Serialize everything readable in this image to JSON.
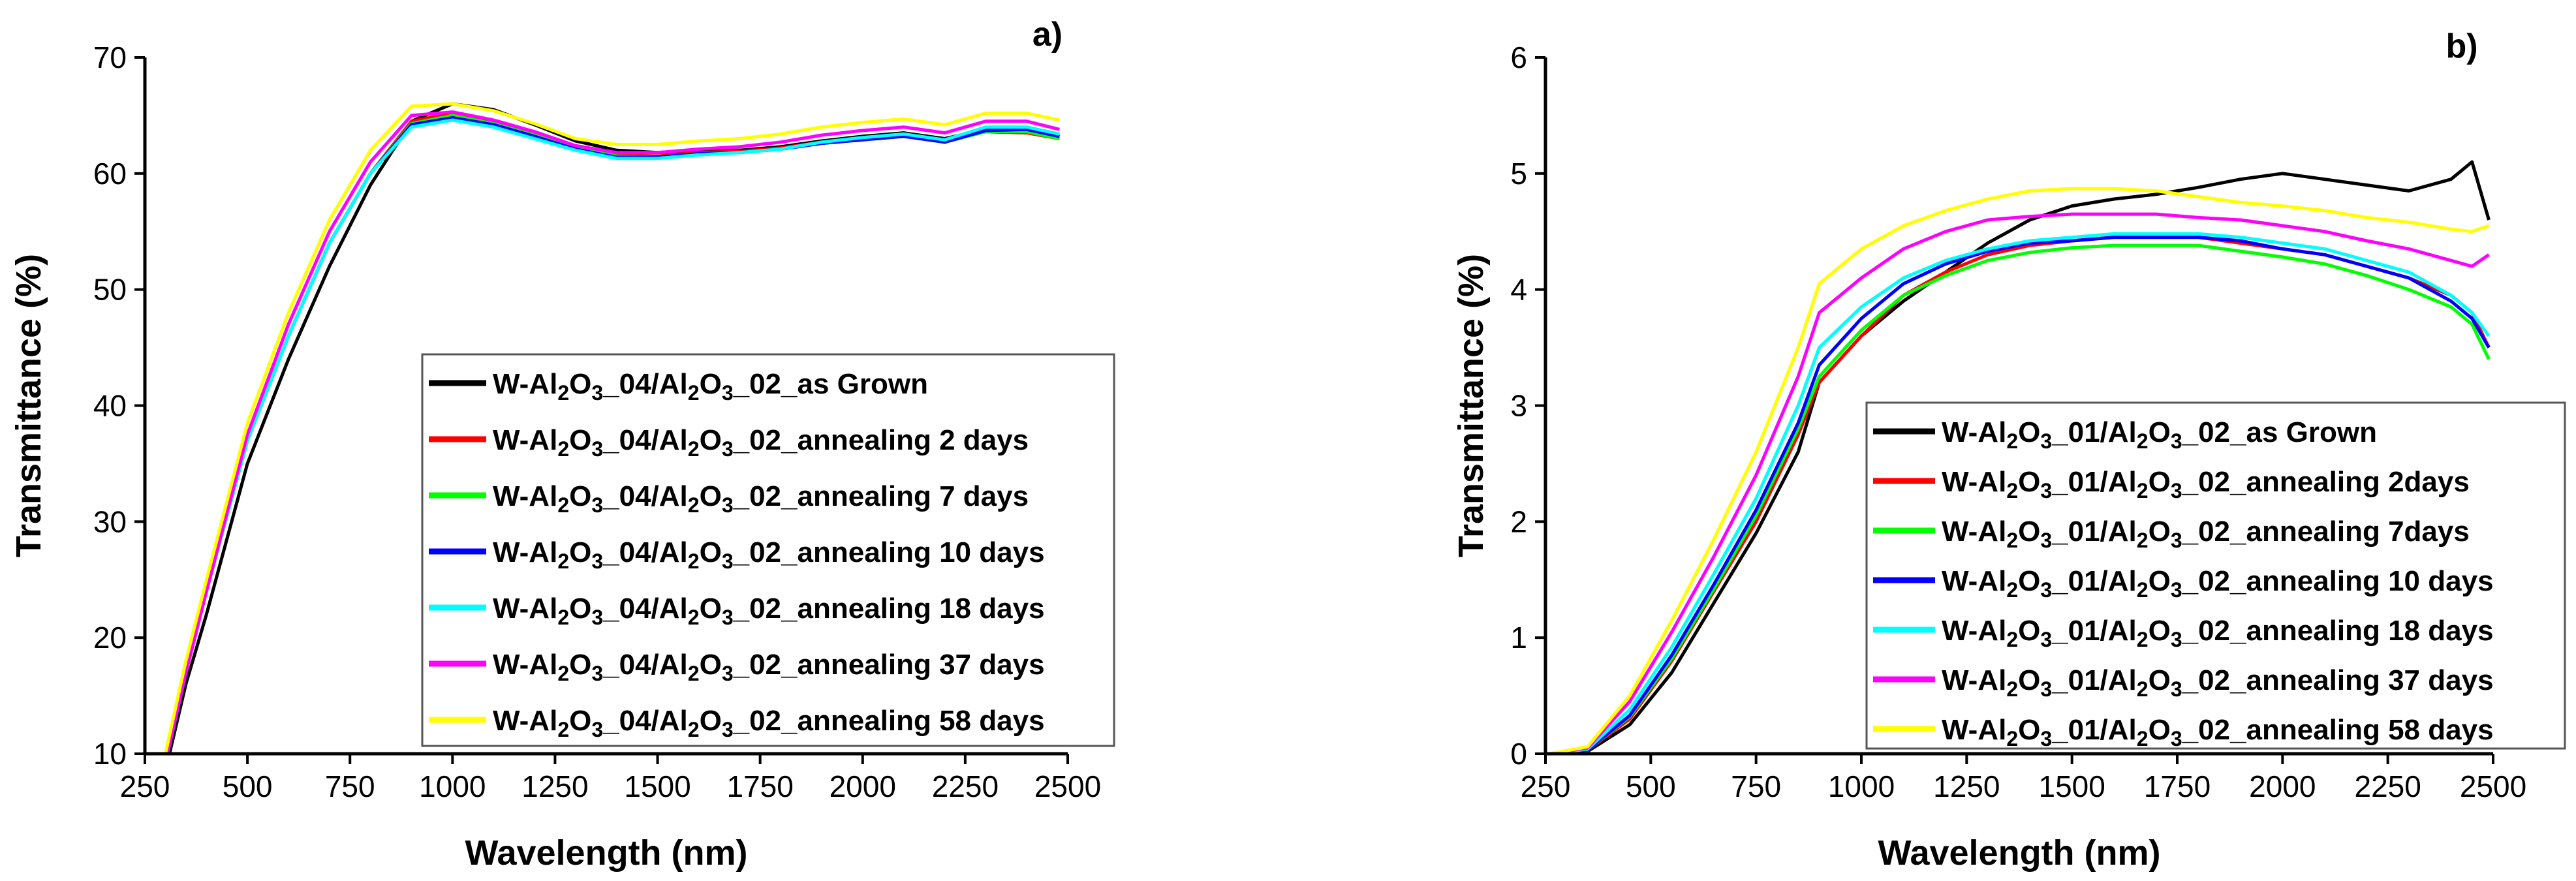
{
  "chart_data": [
    {
      "type": "line",
      "panel_label": "a)",
      "xlabel": "Wavelength (nm)",
      "ylabel": "Transmittance (%)",
      "xlim": [
        250,
        2500
      ],
      "ylim": [
        10,
        70
      ],
      "xticks": [
        250,
        500,
        750,
        1000,
        1250,
        1500,
        1750,
        2000,
        2250,
        2500
      ],
      "yticks": [
        10,
        20,
        30,
        40,
        50,
        60,
        70
      ],
      "xtick_labels": [
        "250",
        "500",
        "750",
        "1000",
        "1250",
        "1500",
        "1750",
        "2000",
        "2250",
        "2500"
      ],
      "ytick_labels": [
        "10",
        "20",
        "30",
        "40",
        "50",
        "60",
        "70"
      ],
      "legend_position": "center-right",
      "series": [
        {
          "name": "W-Al2O3_04/Al2O3_02_as Grown",
          "label_parts": [
            "W-Al",
            "2",
            "O",
            "3",
            "_04/Al",
            "2",
            "O",
            "3",
            "_02_as Grown"
          ],
          "color": "#000000",
          "x": [
            310,
            350,
            400,
            500,
            600,
            700,
            800,
            900,
            1000,
            1100,
            1200,
            1300,
            1400,
            1500,
            1600,
            1700,
            1800,
            1900,
            2000,
            2100,
            2200,
            2300,
            2400,
            2480
          ],
          "y": [
            10,
            16,
            22,
            35,
            44,
            52,
            59,
            64.5,
            66.0,
            65.5,
            64.2,
            62.8,
            62.0,
            61.8,
            62.0,
            62.0,
            62.3,
            62.8,
            63.2,
            63.5,
            63.0,
            63.8,
            63.8,
            63.2
          ]
        },
        {
          "name": "W-Al2O3_04/Al2O3_02_annealing 2 days",
          "label_parts": [
            "W-Al",
            "2",
            "O",
            "3",
            "_04/Al",
            "2",
            "O",
            "3",
            "_02_annealing 2 days"
          ],
          "color": "#ff0000",
          "x": [
            305,
            350,
            400,
            500,
            600,
            700,
            800,
            900,
            1000,
            1100,
            1200,
            1300,
            1400,
            1500,
            1600,
            1700,
            1800,
            1900,
            2000,
            2100,
            2200,
            2300,
            2400,
            2480
          ],
          "y": [
            10,
            17,
            24,
            37,
            46,
            54,
            60,
            64.5,
            65.2,
            64.5,
            63.5,
            62.3,
            61.6,
            61.5,
            61.8,
            61.9,
            62.2,
            62.7,
            63.0,
            63.3,
            62.8,
            63.6,
            63.5,
            63.0
          ]
        },
        {
          "name": "W-Al2O3_04/Al2O3_02_annealing 7 days",
          "label_parts": [
            "W-Al",
            "2",
            "O",
            "3",
            "_04/Al",
            "2",
            "O",
            "3",
            "_02_annealing 7 days"
          ],
          "color": "#00ff00",
          "x": [
            305,
            350,
            400,
            500,
            600,
            700,
            800,
            900,
            1000,
            1100,
            1200,
            1300,
            1400,
            1500,
            1600,
            1700,
            1800,
            1900,
            2000,
            2100,
            2200,
            2300,
            2400,
            2480
          ],
          "y": [
            10,
            17,
            24,
            37,
            46,
            54,
            60,
            64.3,
            65.0,
            64.3,
            63.3,
            62.2,
            61.5,
            61.4,
            61.7,
            61.8,
            62.1,
            62.6,
            62.9,
            63.2,
            62.7,
            63.6,
            63.6,
            63.0
          ]
        },
        {
          "name": "W-Al2O3_04/Al2O3_02_annealing 10 days",
          "label_parts": [
            "W-Al",
            "2",
            "O",
            "3",
            "_04/Al",
            "2",
            "O",
            "3",
            "_02_annealing 10 days"
          ],
          "color": "#0000ff",
          "x": [
            305,
            350,
            400,
            500,
            600,
            700,
            800,
            900,
            1000,
            1100,
            1200,
            1300,
            1400,
            1500,
            1600,
            1700,
            1800,
            1900,
            2000,
            2100,
            2200,
            2300,
            2400,
            2480
          ],
          "y": [
            10,
            17,
            24,
            37,
            46,
            54,
            60,
            64.2,
            64.8,
            64.2,
            63.2,
            62.1,
            61.4,
            61.4,
            61.7,
            61.8,
            62.1,
            62.6,
            62.9,
            63.2,
            62.7,
            63.7,
            63.8,
            63.2
          ]
        },
        {
          "name": "W-Al2O3_04/Al2O3_02_annealing 18 days",
          "label_parts": [
            "W-Al",
            "2",
            "O",
            "3",
            "_04/Al",
            "2",
            "O",
            "3",
            "_02_annealing 18 days"
          ],
          "color": "#00ffff",
          "x": [
            305,
            350,
            400,
            500,
            600,
            700,
            800,
            900,
            1000,
            1100,
            1200,
            1300,
            1400,
            1500,
            1600,
            1700,
            1800,
            1900,
            2000,
            2100,
            2200,
            2300,
            2400,
            2480
          ],
          "y": [
            10,
            17,
            24,
            37,
            46,
            54,
            60,
            64.0,
            64.6,
            64.0,
            63.0,
            62.0,
            61.3,
            61.3,
            61.6,
            61.8,
            62.1,
            62.7,
            63.1,
            63.4,
            62.9,
            64.0,
            64.0,
            63.4
          ]
        },
        {
          "name": "W-Al2O3_04/Al2O3_02_annealing 37 days",
          "label_parts": [
            "W-Al",
            "2",
            "O",
            "3",
            "_04/Al",
            "2",
            "O",
            "3",
            "_02_annealing 37 days"
          ],
          "color": "#ff00ff",
          "x": [
            305,
            350,
            400,
            500,
            600,
            700,
            800,
            900,
            1000,
            1100,
            1200,
            1300,
            1400,
            1500,
            1600,
            1700,
            1800,
            1900,
            2000,
            2100,
            2200,
            2300,
            2400,
            2480
          ],
          "y": [
            10,
            17,
            24,
            37.5,
            47,
            55,
            61,
            65.0,
            65.3,
            64.6,
            63.6,
            62.4,
            61.8,
            61.8,
            62.1,
            62.3,
            62.7,
            63.3,
            63.7,
            64.0,
            63.5,
            64.5,
            64.5,
            63.8
          ]
        },
        {
          "name": "W-Al2O3_04/Al2O3_02_annealing 58 days",
          "label_parts": [
            "W-Al",
            "2",
            "O",
            "3",
            "_04/Al",
            "2",
            "O",
            "3",
            "_02_annealing 58 days"
          ],
          "color": "#ffff00",
          "x": [
            300,
            350,
            400,
            500,
            600,
            700,
            800,
            900,
            1000,
            1100,
            1200,
            1300,
            1400,
            1500,
            1600,
            1700,
            1800,
            1900,
            2000,
            2100,
            2200,
            2300,
            2400,
            2480
          ],
          "y": [
            10,
            18,
            25,
            38.5,
            48,
            56,
            62,
            65.8,
            66.0,
            65.4,
            64.3,
            63.0,
            62.5,
            62.5,
            62.8,
            63.0,
            63.4,
            64.0,
            64.4,
            64.7,
            64.2,
            65.2,
            65.2,
            64.6
          ]
        }
      ]
    },
    {
      "type": "line",
      "panel_label": "b)",
      "xlabel": "Wavelength (nm)",
      "ylabel": "Transmittance (%)",
      "xlim": [
        250,
        2500
      ],
      "ylim": [
        0,
        6
      ],
      "xticks": [
        250,
        500,
        750,
        1000,
        1250,
        1500,
        1750,
        2000,
        2250,
        2500
      ],
      "yticks": [
        0,
        1,
        2,
        3,
        4,
        5,
        6
      ],
      "xtick_labels": [
        "250",
        "500",
        "750",
        "1000",
        "1250",
        "1500",
        "1750",
        "2000",
        "2250",
        "2500"
      ],
      "ytick_labels": [
        "0",
        "1",
        "2",
        "3",
        "4",
        "5",
        "6"
      ],
      "legend_position": "lower-right",
      "series": [
        {
          "name": "W-Al2O3_01/Al2O3_02_as Grown",
          "label_parts": [
            "W-Al",
            "2",
            "O",
            "3",
            "_01/Al",
            "2",
            "O",
            "3",
            "_02_as Grown"
          ],
          "color": "#000000",
          "x": [
            260,
            350,
            450,
            550,
            650,
            750,
            850,
            900,
            1000,
            1100,
            1200,
            1300,
            1400,
            1500,
            1600,
            1700,
            1800,
            1900,
            2000,
            2100,
            2200,
            2300,
            2400,
            2450,
            2490
          ],
          "y": [
            0,
            0.02,
            0.25,
            0.7,
            1.3,
            1.9,
            2.6,
            3.2,
            3.6,
            3.9,
            4.15,
            4.4,
            4.6,
            4.72,
            4.78,
            4.82,
            4.88,
            4.95,
            5.0,
            4.95,
            4.9,
            4.85,
            4.95,
            5.1,
            4.6
          ]
        },
        {
          "name": "W-Al2O3_01/Al2O3_02_annealing 2days",
          "label_parts": [
            "W-Al",
            "2",
            "O",
            "3",
            "_01/Al",
            "2",
            "O",
            "3",
            "_02_annealing 2days"
          ],
          "color": "#ff0000",
          "x": [
            260,
            350,
            450,
            550,
            650,
            750,
            850,
            900,
            1000,
            1100,
            1200,
            1300,
            1400,
            1500,
            1600,
            1700,
            1800,
            1900,
            2000,
            2100,
            2200,
            2300,
            2400,
            2450,
            2490
          ],
          "y": [
            0,
            0.03,
            0.3,
            0.8,
            1.4,
            2.0,
            2.75,
            3.2,
            3.6,
            3.95,
            4.15,
            4.3,
            4.38,
            4.42,
            4.45,
            4.45,
            4.45,
            4.4,
            4.35,
            4.3,
            4.2,
            4.1,
            3.95,
            3.8,
            3.5
          ]
        },
        {
          "name": "W-Al2O3_01/Al2O3_02_annealing 7days",
          "label_parts": [
            "W-Al",
            "2",
            "O",
            "3",
            "_01/Al",
            "2",
            "O",
            "3",
            "_02_annealing 7days"
          ],
          "color": "#00ff00",
          "x": [
            260,
            350,
            450,
            550,
            650,
            750,
            850,
            900,
            1000,
            1100,
            1200,
            1300,
            1400,
            1500,
            1600,
            1700,
            1800,
            1900,
            2000,
            2100,
            2200,
            2300,
            2400,
            2450,
            2490
          ],
          "y": [
            0,
            0.03,
            0.32,
            0.82,
            1.42,
            2.05,
            2.8,
            3.25,
            3.65,
            3.95,
            4.12,
            4.25,
            4.32,
            4.36,
            4.38,
            4.38,
            4.38,
            4.33,
            4.28,
            4.22,
            4.12,
            4.0,
            3.85,
            3.7,
            3.4
          ]
        },
        {
          "name": "W-Al2O3_01/Al2O3_02_annealing 10 days",
          "label_parts": [
            "W-Al",
            "2",
            "O",
            "3",
            "_01/Al",
            "2",
            "O",
            "3",
            "_02_annealing 10 days"
          ],
          "color": "#0000ff",
          "x": [
            260,
            350,
            450,
            550,
            650,
            750,
            850,
            900,
            1000,
            1100,
            1200,
            1300,
            1400,
            1500,
            1600,
            1700,
            1800,
            1900,
            2000,
            2100,
            2200,
            2300,
            2400,
            2450,
            2490
          ],
          "y": [
            0,
            0.03,
            0.33,
            0.85,
            1.46,
            2.1,
            2.85,
            3.35,
            3.75,
            4.05,
            4.22,
            4.33,
            4.4,
            4.42,
            4.45,
            4.45,
            4.45,
            4.42,
            4.35,
            4.3,
            4.2,
            4.1,
            3.9,
            3.75,
            3.5
          ]
        },
        {
          "name": "W-Al2O3_01/Al2O3_02_annealing 18 days",
          "label_parts": [
            "W-Al",
            "2",
            "O",
            "3",
            "_01/Al",
            "2",
            "O",
            "3",
            "_02_annealing 18 days"
          ],
          "color": "#00ffff",
          "x": [
            260,
            350,
            450,
            550,
            650,
            750,
            850,
            900,
            1000,
            1100,
            1200,
            1300,
            1400,
            1500,
            1600,
            1700,
            1800,
            1900,
            2000,
            2100,
            2200,
            2300,
            2400,
            2450,
            2490
          ],
          "y": [
            0,
            0.04,
            0.38,
            0.92,
            1.55,
            2.2,
            3.0,
            3.5,
            3.85,
            4.1,
            4.25,
            4.35,
            4.42,
            4.45,
            4.48,
            4.48,
            4.48,
            4.45,
            4.4,
            4.35,
            4.25,
            4.15,
            3.95,
            3.8,
            3.6
          ]
        },
        {
          "name": "W-Al2O3_01/Al2O3_02_annealing 37 days",
          "label_parts": [
            "W-Al",
            "2",
            "O",
            "3",
            "_01/Al",
            "2",
            "O",
            "3",
            "_02_annealing 37 days"
          ],
          "color": "#ff00ff",
          "x": [
            260,
            350,
            450,
            550,
            650,
            750,
            850,
            900,
            1000,
            1100,
            1200,
            1300,
            1400,
            1500,
            1600,
            1700,
            1800,
            1900,
            2000,
            2100,
            2200,
            2300,
            2400,
            2450,
            2490
          ],
          "y": [
            0,
            0.05,
            0.45,
            1.05,
            1.7,
            2.4,
            3.25,
            3.8,
            4.1,
            4.35,
            4.5,
            4.6,
            4.63,
            4.65,
            4.65,
            4.65,
            4.62,
            4.6,
            4.55,
            4.5,
            4.42,
            4.35,
            4.25,
            4.2,
            4.3
          ]
        },
        {
          "name": "W-Al2O3_01/Al2O3_02_annealing 58 days",
          "label_parts": [
            "W-Al",
            "2",
            "O",
            "3",
            "_01/Al",
            "2",
            "O",
            "3",
            "_02_annealing 58 days"
          ],
          "color": "#ffff00",
          "x": [
            260,
            350,
            450,
            550,
            650,
            750,
            850,
            900,
            1000,
            1100,
            1200,
            1300,
            1400,
            1500,
            1600,
            1700,
            1800,
            1900,
            2000,
            2100,
            2200,
            2300,
            2400,
            2450,
            2490
          ],
          "y": [
            0,
            0.06,
            0.5,
            1.15,
            1.85,
            2.6,
            3.5,
            4.05,
            4.35,
            4.55,
            4.68,
            4.78,
            4.85,
            4.87,
            4.87,
            4.85,
            4.8,
            4.75,
            4.72,
            4.68,
            4.62,
            4.58,
            4.52,
            4.5,
            4.55
          ]
        }
      ]
    }
  ]
}
